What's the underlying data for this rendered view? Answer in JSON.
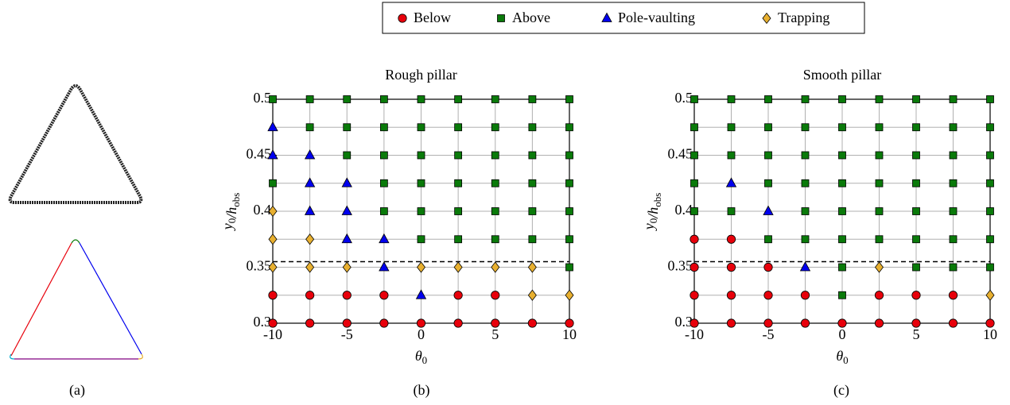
{
  "figure": {
    "panel_labels": [
      "(a)",
      "(b)",
      "(c)"
    ]
  },
  "chart_data": [
    {
      "type": "scatter",
      "title": "Rough pillar",
      "x_label": [
        {
          "text": "θ",
          "sub": "0"
        }
      ],
      "y_label": [
        {
          "text": "y",
          "sub": "0"
        },
        {
          "text": "/h",
          "sub": "obs"
        }
      ],
      "xlim": [
        -10,
        10
      ],
      "ylim": [
        0.3,
        0.5
      ],
      "xticks": [
        -10,
        -5,
        0,
        5,
        10
      ],
      "yticks": [
        0.3,
        0.35,
        0.4,
        0.45,
        0.5
      ],
      "xgrid": [
        -10,
        -7.5,
        -5,
        -2.5,
        0,
        2.5,
        5,
        7.5,
        10
      ],
      "ygrid": [
        0.3,
        0.325,
        0.35,
        0.375,
        0.4,
        0.425,
        0.45,
        0.475,
        0.5
      ],
      "reference_y": 0.355,
      "series": [
        {
          "name": "Below",
          "color": "#e8000b",
          "marker": "circle",
          "x": [
            -10,
            -7.5,
            -5,
            -2.5,
            2.5,
            5,
            -10,
            -7.5,
            -5,
            -2.5,
            0,
            2.5,
            5,
            7.5,
            10
          ],
          "y": [
            0.325,
            0.325,
            0.325,
            0.325,
            0.325,
            0.325,
            0.3,
            0.3,
            0.3,
            0.3,
            0.3,
            0.3,
            0.3,
            0.3,
            0.3
          ]
        },
        {
          "name": "Above",
          "color": "#0a7a0a",
          "marker": "square",
          "x": [
            -10,
            -7.5,
            -5,
            -2.5,
            0,
            2.5,
            5,
            7.5,
            10,
            -7.5,
            -5,
            -2.5,
            0,
            2.5,
            5,
            7.5,
            10,
            -5,
            -2.5,
            0,
            2.5,
            5,
            7.5,
            10,
            -10,
            -2.5,
            0,
            2.5,
            5,
            7.5,
            10,
            -2.5,
            0,
            2.5,
            5,
            7.5,
            10,
            0,
            2.5,
            5,
            7.5,
            10,
            10
          ],
          "y": [
            0.5,
            0.5,
            0.5,
            0.5,
            0.5,
            0.5,
            0.5,
            0.5,
            0.5,
            0.475,
            0.475,
            0.475,
            0.475,
            0.475,
            0.475,
            0.475,
            0.475,
            0.45,
            0.45,
            0.45,
            0.45,
            0.45,
            0.45,
            0.45,
            0.425,
            0.425,
            0.425,
            0.425,
            0.425,
            0.425,
            0.425,
            0.4,
            0.4,
            0.4,
            0.4,
            0.4,
            0.4,
            0.375,
            0.375,
            0.375,
            0.375,
            0.375,
            0.35
          ]
        },
        {
          "name": "Pole-vaulting",
          "color": "#0000ee",
          "marker": "triangle",
          "x": [
            -10,
            -10,
            -7.5,
            -7.5,
            -5,
            -7.5,
            -5,
            -5,
            -2.5,
            -2.5,
            0
          ],
          "y": [
            0.475,
            0.45,
            0.45,
            0.425,
            0.425,
            0.4,
            0.4,
            0.375,
            0.375,
            0.35,
            0.325
          ]
        },
        {
          "name": "Trapping",
          "color": "#e8b030",
          "marker": "diamond",
          "x": [
            -10,
            -10,
            -7.5,
            -10,
            -7.5,
            -5,
            0,
            2.5,
            5,
            7.5,
            7.5,
            10
          ],
          "y": [
            0.4,
            0.375,
            0.375,
            0.35,
            0.35,
            0.35,
            0.35,
            0.35,
            0.35,
            0.35,
            0.325,
            0.325
          ]
        }
      ]
    },
    {
      "type": "scatter",
      "title": "Smooth pillar",
      "x_label": [
        {
          "text": "θ",
          "sub": "0"
        }
      ],
      "y_label": [
        {
          "text": "y",
          "sub": "0"
        },
        {
          "text": "/h",
          "sub": "obs"
        }
      ],
      "xlim": [
        -10,
        10
      ],
      "ylim": [
        0.3,
        0.5
      ],
      "xticks": [
        -10,
        -5,
        0,
        5,
        10
      ],
      "yticks": [
        0.3,
        0.35,
        0.4,
        0.45,
        0.5
      ],
      "xgrid": [
        -10,
        -7.5,
        -5,
        -2.5,
        0,
        2.5,
        5,
        7.5,
        10
      ],
      "ygrid": [
        0.3,
        0.325,
        0.35,
        0.375,
        0.4,
        0.425,
        0.45,
        0.475,
        0.5
      ],
      "reference_y": 0.355,
      "series": [
        {
          "name": "Below",
          "color": "#e8000b",
          "marker": "circle",
          "x": [
            -10,
            -7.5,
            -10,
            -7.5,
            -5,
            -10,
            -7.5,
            -5,
            -2.5,
            2.5,
            5,
            7.5,
            -10,
            -7.5,
            -5,
            -2.5,
            0,
            2.5,
            5,
            7.5,
            10
          ],
          "y": [
            0.375,
            0.375,
            0.35,
            0.35,
            0.35,
            0.325,
            0.325,
            0.325,
            0.325,
            0.325,
            0.325,
            0.325,
            0.3,
            0.3,
            0.3,
            0.3,
            0.3,
            0.3,
            0.3,
            0.3,
            0.3
          ]
        },
        {
          "name": "Above",
          "color": "#0a7a0a",
          "marker": "square",
          "x": [
            -10,
            -7.5,
            -5,
            -2.5,
            0,
            2.5,
            5,
            7.5,
            10,
            -10,
            -7.5,
            -5,
            -2.5,
            0,
            2.5,
            5,
            7.5,
            10,
            -10,
            -7.5,
            -5,
            -2.5,
            0,
            2.5,
            5,
            7.5,
            10,
            -10,
            -5,
            -2.5,
            0,
            2.5,
            5,
            7.5,
            10,
            -10,
            -7.5,
            -2.5,
            0,
            2.5,
            5,
            7.5,
            10,
            -5,
            -2.5,
            0,
            2.5,
            5,
            7.5,
            10,
            0,
            5,
            7.5,
            10,
            0
          ],
          "y": [
            0.5,
            0.5,
            0.5,
            0.5,
            0.5,
            0.5,
            0.5,
            0.5,
            0.5,
            0.475,
            0.475,
            0.475,
            0.475,
            0.475,
            0.475,
            0.475,
            0.475,
            0.475,
            0.45,
            0.45,
            0.45,
            0.45,
            0.45,
            0.45,
            0.45,
            0.45,
            0.45,
            0.425,
            0.425,
            0.425,
            0.425,
            0.425,
            0.425,
            0.425,
            0.425,
            0.4,
            0.4,
            0.4,
            0.4,
            0.4,
            0.4,
            0.4,
            0.4,
            0.375,
            0.375,
            0.375,
            0.375,
            0.375,
            0.375,
            0.375,
            0.35,
            0.35,
            0.35,
            0.35,
            0.325
          ]
        },
        {
          "name": "Pole-vaulting",
          "color": "#0000ee",
          "marker": "triangle",
          "x": [
            -7.5,
            -5,
            -2.5
          ],
          "y": [
            0.425,
            0.4,
            0.35
          ]
        },
        {
          "name": "Trapping",
          "color": "#e8b030",
          "marker": "diamond",
          "x": [
            2.5,
            10
          ],
          "y": [
            0.35,
            0.325
          ]
        }
      ]
    }
  ]
}
